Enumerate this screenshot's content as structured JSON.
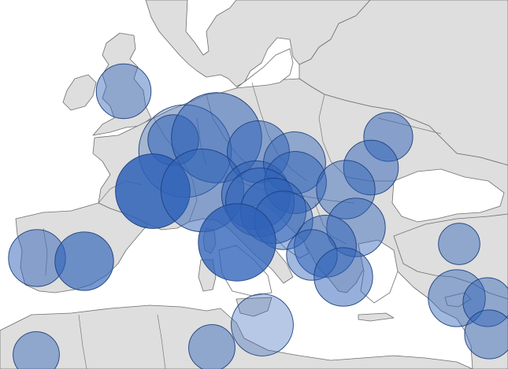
{
  "map": {
    "region": "Europe",
    "colors": {
      "water": "#ffffff",
      "land": "#dedede",
      "border": "#6e6e6e",
      "bubble_fill": "#2e62b8",
      "bubble_stroke": "#1f3f7a"
    },
    "symbols": [
      {
        "name": "north-england",
        "magnitude": 0.35,
        "opacity": 0.45
      },
      {
        "name": "paris-basin",
        "magnitude": 1.0,
        "opacity": 0.32
      },
      {
        "name": "belgium",
        "magnitude": 0.3,
        "opacity": 0.55
      },
      {
        "name": "germany-west",
        "magnitude": 0.95,
        "opacity": 0.52
      },
      {
        "name": "czechia",
        "magnitude": 0.45,
        "opacity": 0.5
      },
      {
        "name": "lyon",
        "magnitude": 0.65,
        "opacity": 0.85
      },
      {
        "name": "switzerland",
        "magnitude": 0.8,
        "opacity": 0.5
      },
      {
        "name": "austria-west",
        "magnitude": 0.55,
        "opacity": 0.52
      },
      {
        "name": "austria-east",
        "magnitude": 0.45,
        "opacity": 0.45
      },
      {
        "name": "hungary-north",
        "magnitude": 0.45,
        "opacity": 0.5
      },
      {
        "name": "slovenia",
        "magnitude": 0.55,
        "opacity": 0.5
      },
      {
        "name": "croatia",
        "magnitude": 0.5,
        "opacity": 0.5
      },
      {
        "name": "serbia-north",
        "magnitude": 0.4,
        "opacity": 0.45
      },
      {
        "name": "ukraine-west",
        "magnitude": 0.28,
        "opacity": 0.5
      },
      {
        "name": "romania-east",
        "magnitude": 0.35,
        "opacity": 0.5
      },
      {
        "name": "romania-south",
        "magnitude": 0.4,
        "opacity": 0.45
      },
      {
        "name": "bulgaria",
        "magnitude": 0.4,
        "opacity": 0.45
      },
      {
        "name": "italy-central",
        "magnitude": 0.7,
        "opacity": 0.78
      },
      {
        "name": "portugal",
        "magnitude": 0.38,
        "opacity": 0.5
      },
      {
        "name": "spain-central",
        "magnitude": 0.4,
        "opacity": 0.65
      },
      {
        "name": "macedonia",
        "magnitude": 0.45,
        "opacity": 0.5
      },
      {
        "name": "albania",
        "magnitude": 0.3,
        "opacity": 0.45
      },
      {
        "name": "greece",
        "magnitude": 0.4,
        "opacity": 0.5
      },
      {
        "name": "sicily",
        "magnitude": 0.45,
        "opacity": 0.35
      },
      {
        "name": "turkey-south",
        "magnitude": 0.2,
        "opacity": 0.45
      },
      {
        "name": "cyprus-west",
        "magnitude": 0.38,
        "opacity": 0.45
      },
      {
        "name": "cyprus-east",
        "magnitude": 0.28,
        "opacity": 0.45
      },
      {
        "name": "levant",
        "magnitude": 0.28,
        "opacity": 0.45
      },
      {
        "name": "tunisia",
        "magnitude": 0.25,
        "opacity": 0.45
      },
      {
        "name": "algeria",
        "magnitude": 0.25,
        "opacity": 0.45
      }
    ]
  }
}
